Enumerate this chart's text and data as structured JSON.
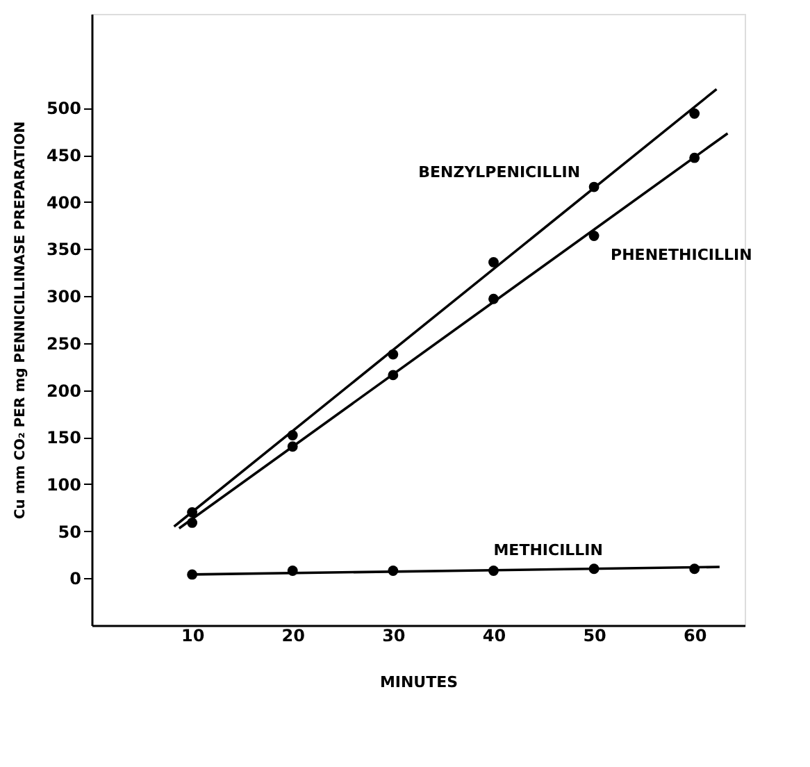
{
  "chart_data": {
    "type": "scatter",
    "xlabel": "MINUTES",
    "ylabel": "Cu mm CO₂ PER mg PENNICILLINASE PREPARATION",
    "xlim": [
      0,
      65
    ],
    "ylim": [
      -50,
      600
    ],
    "xticks": [
      10,
      20,
      30,
      40,
      50,
      60
    ],
    "yticks": [
      0,
      50,
      100,
      150,
      200,
      250,
      300,
      350,
      400,
      450,
      500
    ],
    "grid": false,
    "legend": false,
    "marker": "circle",
    "series": [
      {
        "name": "BENZYLPENICILLIN",
        "color": "#000000",
        "x": [
          10,
          20,
          30,
          40,
          50,
          60
        ],
        "values": [
          70,
          152,
          238,
          336,
          416,
          494
        ]
      },
      {
        "name": "PHENETHICILLIN",
        "color": "#000000",
        "x": [
          10,
          20,
          30,
          40,
          50,
          60
        ],
        "values": [
          59,
          140,
          216,
          297,
          364,
          447
        ]
      },
      {
        "name": "METHICILLIN",
        "color": "#000000",
        "x": [
          10,
          20,
          30,
          40,
          50,
          60
        ],
        "values": [
          4,
          8,
          8,
          8,
          10,
          10
        ]
      },
      {
        "type": "line",
        "color": "#000000",
        "line_style": "solid",
        "marker": "none",
        "x": [
          8.2,
          62.2
        ],
        "values": [
          55,
          520
        ]
      },
      {
        "type": "line",
        "color": "#000000",
        "line_style": "solid",
        "marker": "none",
        "x": [
          8.7,
          63.3
        ],
        "values": [
          53,
          473
        ]
      },
      {
        "type": "line",
        "color": "#000000",
        "line_style": "solid",
        "marker": "none",
        "x": [
          10,
          62.5
        ],
        "values": [
          4,
          12
        ]
      }
    ]
  }
}
